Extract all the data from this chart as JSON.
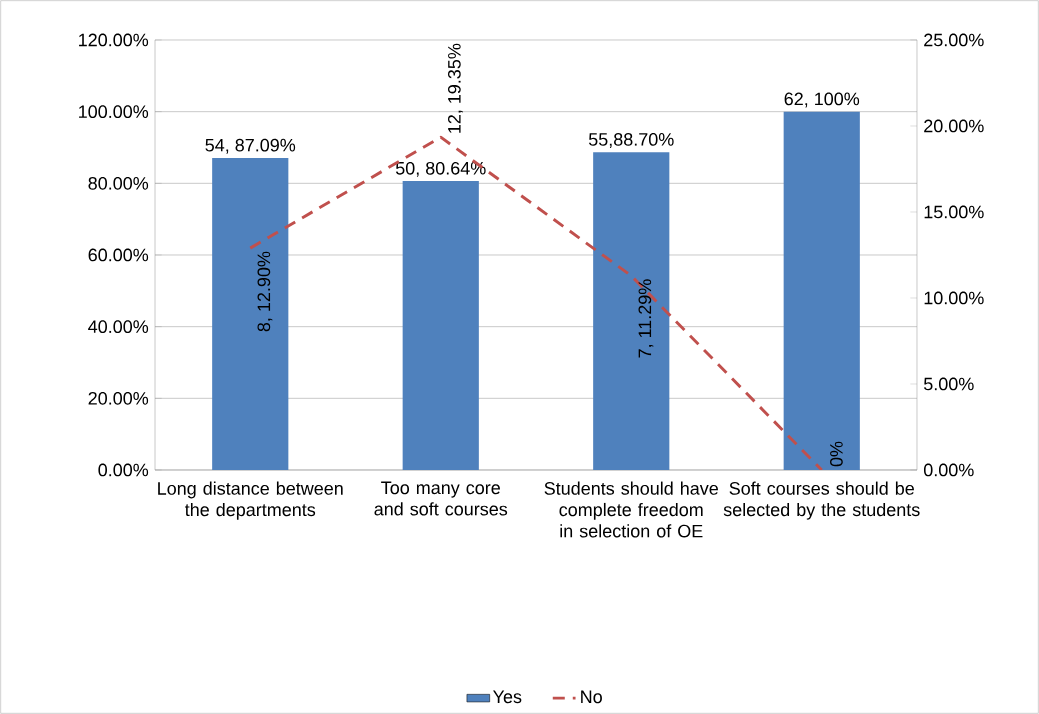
{
  "chart_data": {
    "type": "bar",
    "categories": [
      "Long distance between the departments",
      "Too many core and soft courses",
      "Students should have complete freedom in selection of OE",
      "Soft courses should be selected by the students"
    ],
    "series": [
      {
        "name": "Yes",
        "color": "#4f81bd",
        "values": [
          87.09,
          80.64,
          88.7,
          100
        ],
        "value_labels": [
          "54, 87.09%",
          "50, 80.64%",
          "55,88.70%",
          "62, 100%"
        ]
      },
      {
        "name": "No",
        "type": "line",
        "axis": "y2",
        "color": "#c0504d",
        "line_style": "dashed",
        "values": [
          12.9,
          19.35,
          11.29,
          0
        ],
        "value_labels": [
          "8, 12.90%",
          "12, 19.35%",
          "7, 11.29%",
          "0%"
        ]
      }
    ],
    "ylim": [
      0,
      120
    ],
    "yticks": [
      {
        "value": 0,
        "label": "0.00%"
      },
      {
        "value": 20,
        "label": "20.00%"
      },
      {
        "value": 40,
        "label": "40.00%"
      },
      {
        "value": 60,
        "label": "60.00%"
      },
      {
        "value": 80,
        "label": "80.00%"
      },
      {
        "value": 100,
        "label": "100.00%"
      },
      {
        "value": 120,
        "label": "120.00%"
      }
    ],
    "y2lim": [
      0,
      25
    ],
    "y2ticks": [
      {
        "value": 0,
        "label": "0.00%"
      },
      {
        "value": 5,
        "label": "5.00%"
      },
      {
        "value": 10,
        "label": "10.00%"
      },
      {
        "value": 15,
        "label": "15.00%"
      },
      {
        "value": 20,
        "label": "20.00%"
      },
      {
        "value": 25,
        "label": "25.00%"
      }
    ],
    "grid": "y",
    "legend": "bottom"
  }
}
